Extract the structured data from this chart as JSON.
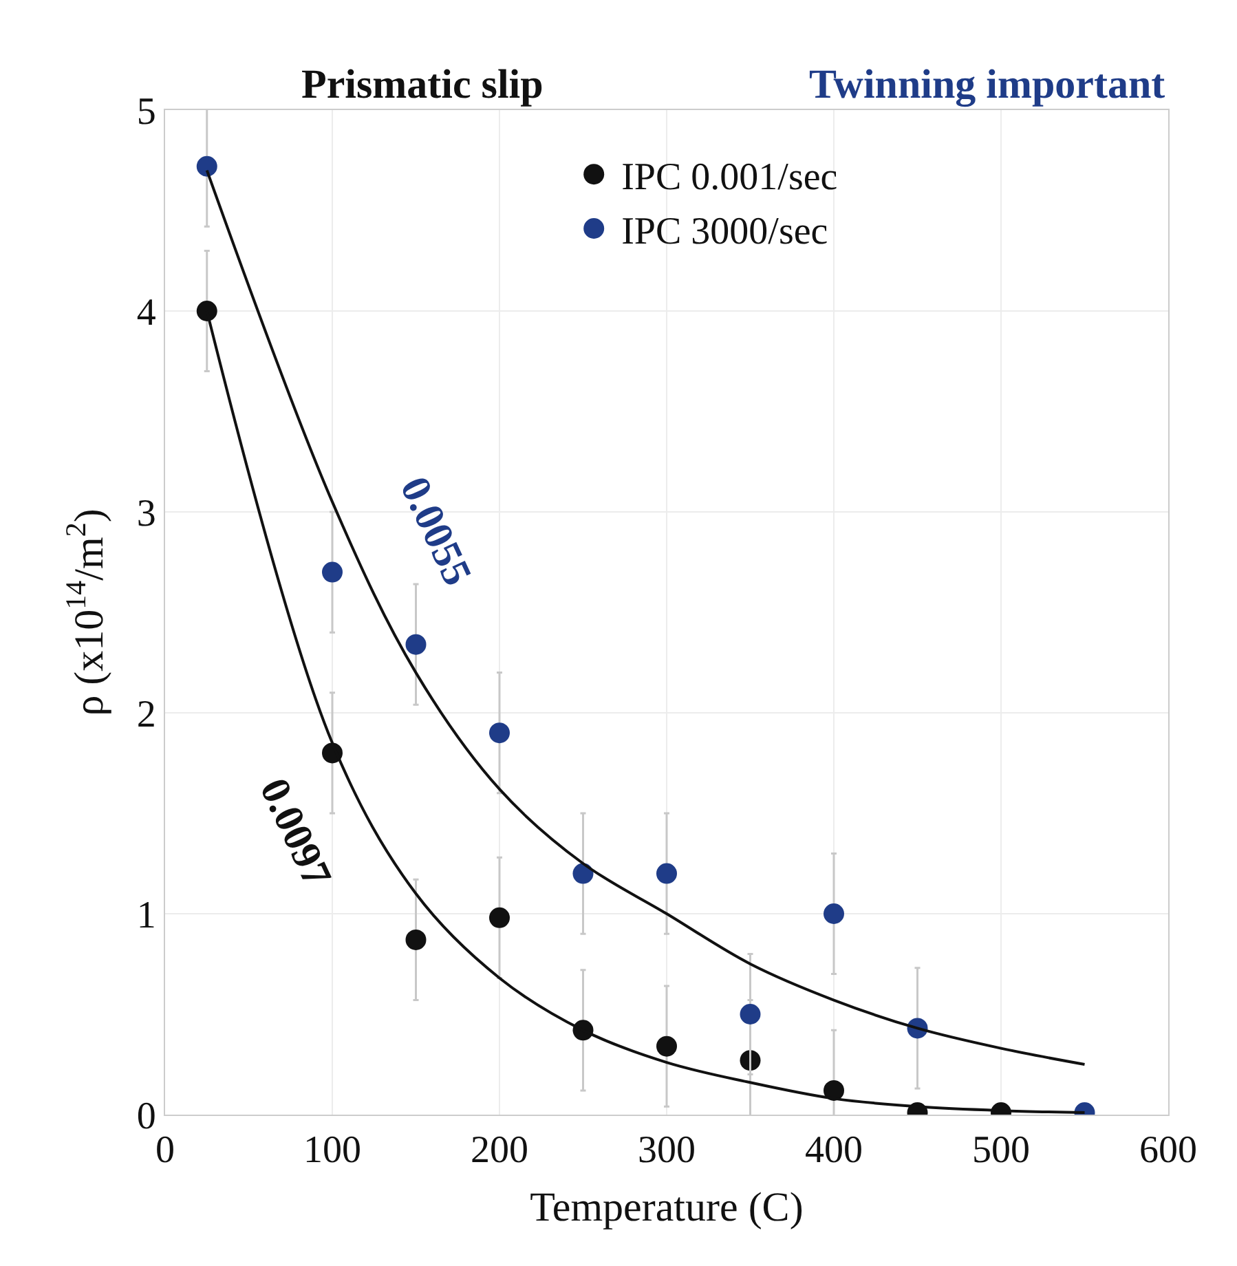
{
  "chart_data": {
    "type": "scatter",
    "xlabel": "Temperature (C)",
    "ylabel": "ρ (x10$^{14}$/m$^{2}$)",
    "xlim": [
      0,
      600
    ],
    "xticks": [
      0,
      100,
      200,
      300,
      400,
      500,
      600
    ],
    "ylim": [
      0,
      5
    ],
    "yticks": [
      0,
      1,
      2,
      3,
      4,
      5
    ],
    "grid": true,
    "legend": "top right",
    "marker": "circle",
    "annotations": [
      "Prismatic slip",
      "Twinning important",
      "0.0055",
      "0.0097"
    ],
    "series": [
      {
        "name": "IPC 0.001/sec",
        "color": "#111111",
        "x": [
          25,
          100,
          150,
          200,
          250,
          300,
          350,
          400,
          450,
          500
        ],
        "values": [
          4.0,
          1.8,
          0.87,
          0.98,
          0.42,
          0.34,
          0.27,
          0.12,
          0.01,
          0.01
        ],
        "errors": [
          0.3,
          0.3,
          0.3,
          0.3,
          0.3,
          0.3,
          0.3,
          0.3,
          null,
          null
        ]
      },
      {
        "name": "IPC 3000/sec",
        "color": "#1f3c88",
        "x": [
          25,
          100,
          150,
          200,
          250,
          300,
          350,
          400,
          450,
          550
        ],
        "values": [
          4.72,
          2.7,
          2.34,
          1.9,
          1.2,
          1.2,
          0.5,
          1.0,
          0.43,
          0.01
        ],
        "errors": [
          0.3,
          0.3,
          0.3,
          0.3,
          0.3,
          0.3,
          0.3,
          0.3,
          0.3,
          null
        ]
      },
      {
        "type": "line",
        "marker": "none",
        "color": "#111111",
        "x": [
          25,
          100,
          150,
          200,
          250,
          300,
          350,
          400,
          450,
          500,
          550
        ],
        "values": [
          4.0,
          1.85,
          1.1,
          0.68,
          0.42,
          0.26,
          0.16,
          0.08,
          0.04,
          0.02,
          0.01
        ]
      },
      {
        "type": "line",
        "marker": "none",
        "color": "#111111",
        "x": [
          25,
          100,
          150,
          200,
          250,
          300,
          350,
          400,
          450,
          500,
          550
        ],
        "values": [
          4.7,
          3.05,
          2.2,
          1.62,
          1.25,
          1.0,
          0.75,
          0.57,
          0.43,
          0.33,
          0.25
        ]
      }
    ]
  }
}
